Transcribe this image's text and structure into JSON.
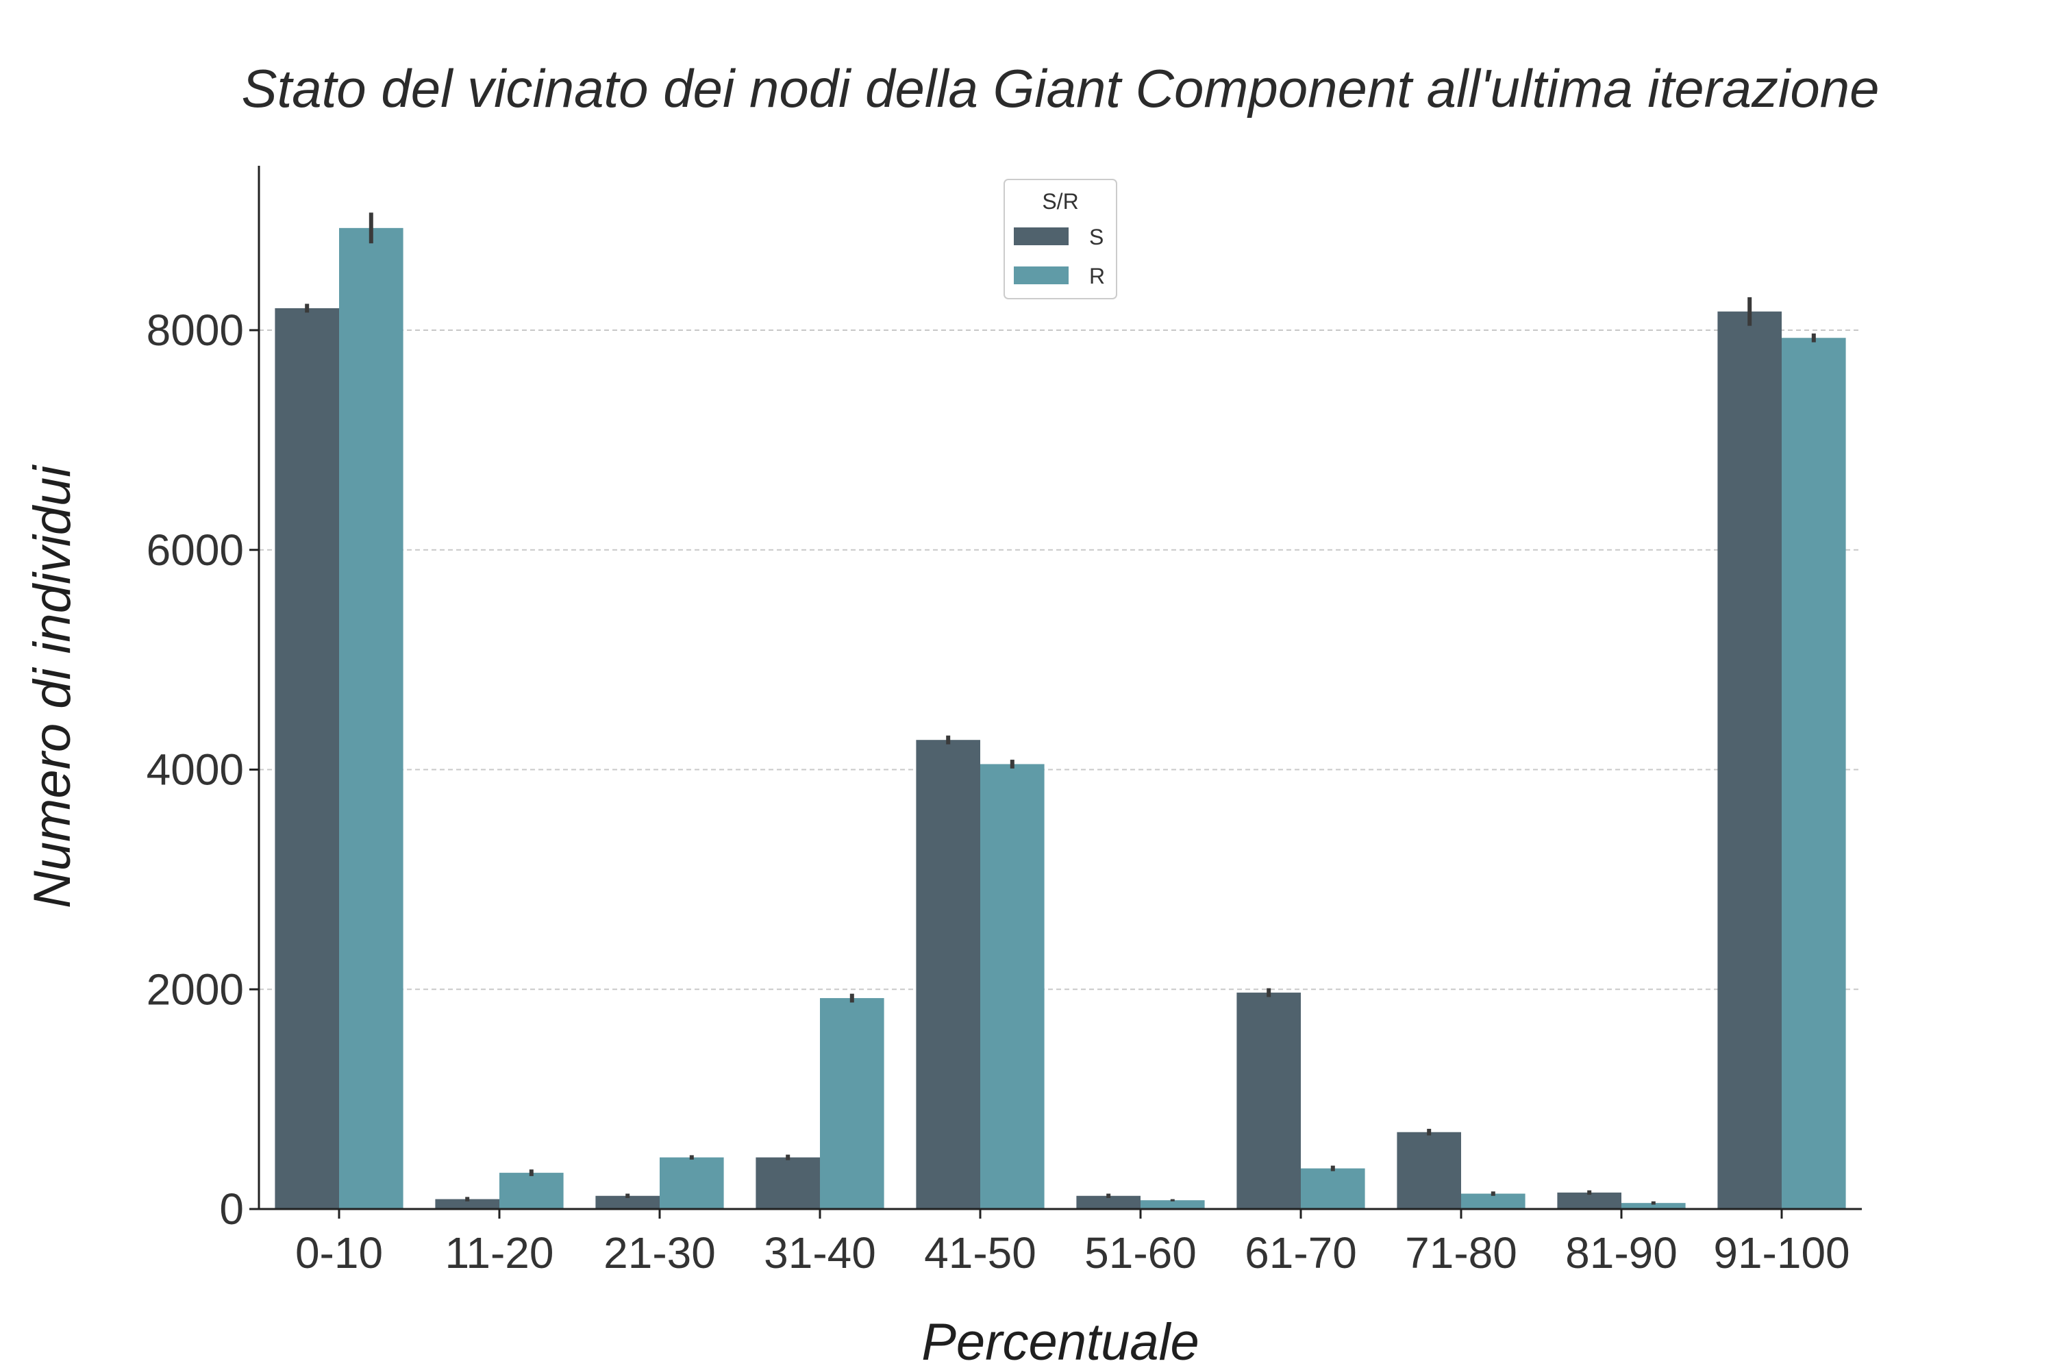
{
  "chart_data": {
    "type": "bar",
    "title": "Stato del vicinato dei nodi della Giant Component all'ultima iterazione",
    "xlabel": "Percentuale",
    "ylabel": "Numero di individui",
    "categories": [
      "0-10",
      "11-20",
      "21-30",
      "31-40",
      "41-50",
      "51-60",
      "61-70",
      "71-80",
      "81-90",
      "91-100"
    ],
    "ylim": [
      0,
      9500
    ],
    "yticks": [
      0,
      2000,
      4000,
      6000,
      8000
    ],
    "ytick_labels": [
      "0",
      "2000",
      "4000",
      "6000",
      "8000"
    ],
    "grid": "horizontal dashed",
    "legend": {
      "title": "S/R",
      "placement": "top-center"
    },
    "series": [
      {
        "name": "S",
        "color": "#50626d",
        "values": [
          8200,
          90,
          120,
          470,
          4270,
          120,
          1970,
          700,
          150,
          8170
        ],
        "errors": [
          40,
          20,
          20,
          25,
          40,
          20,
          40,
          30,
          20,
          130
        ]
      },
      {
        "name": "R",
        "color": "#609ba7",
        "values": [
          8930,
          330,
          470,
          1920,
          4050,
          80,
          370,
          140,
          55,
          7930
        ],
        "errors": [
          140,
          30,
          20,
          40,
          40,
          10,
          25,
          20,
          15,
          40
        ]
      }
    ]
  }
}
